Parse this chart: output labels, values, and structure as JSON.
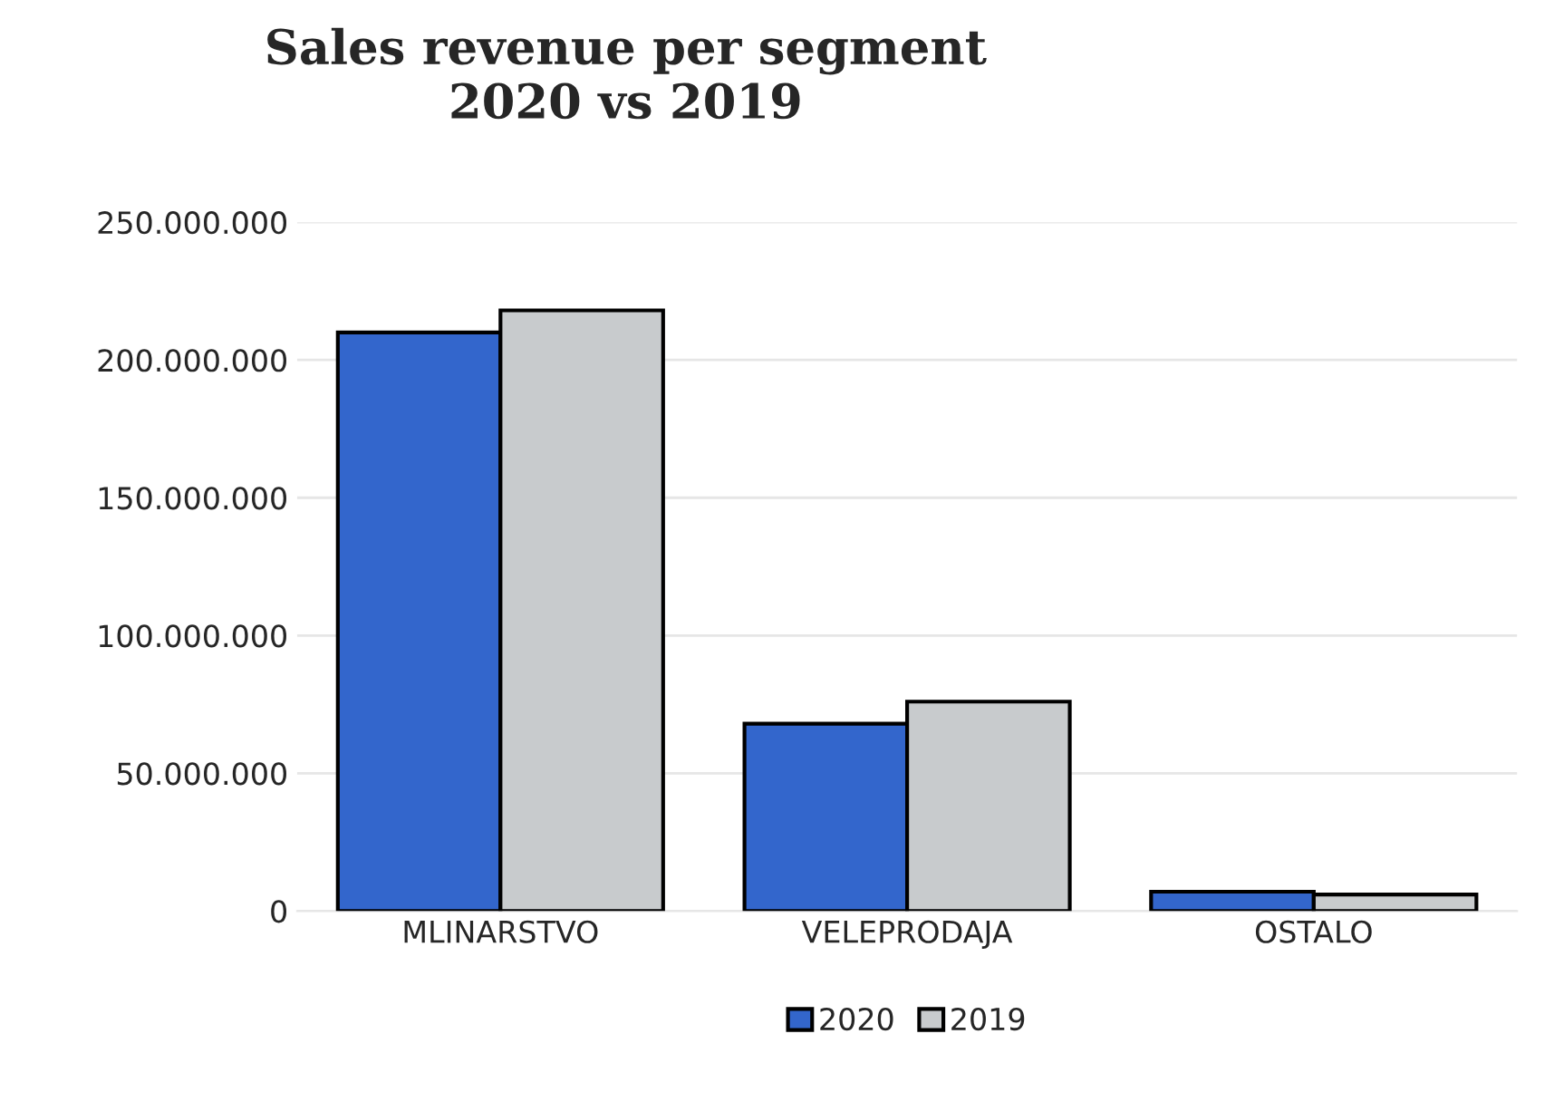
{
  "chart_data": {
    "type": "bar",
    "title": "Sales revenue per segment\n2020 vs 2019",
    "categories": [
      "MLINARSTVO",
      "VELEPRODAJA",
      "OSTALO"
    ],
    "series": [
      {
        "name": "2020",
        "color": "#3366cc",
        "values": [
          210000000,
          68000000,
          7000000
        ]
      },
      {
        "name": "2019",
        "color": "#c8cbcd",
        "values": [
          218000000,
          76000000,
          6000000
        ]
      }
    ],
    "ylim": [
      0,
      250000000
    ],
    "yticks": [
      {
        "value": 0,
        "label": "0"
      },
      {
        "value": 50000000,
        "label": "50.000.000"
      },
      {
        "value": 100000000,
        "label": "100.000.000"
      },
      {
        "value": 150000000,
        "label": "150.000.000"
      },
      {
        "value": 200000000,
        "label": "200.000.000"
      },
      {
        "value": 250000000,
        "label": "250.000.000"
      }
    ],
    "grid": "y",
    "legend": "bottom"
  }
}
